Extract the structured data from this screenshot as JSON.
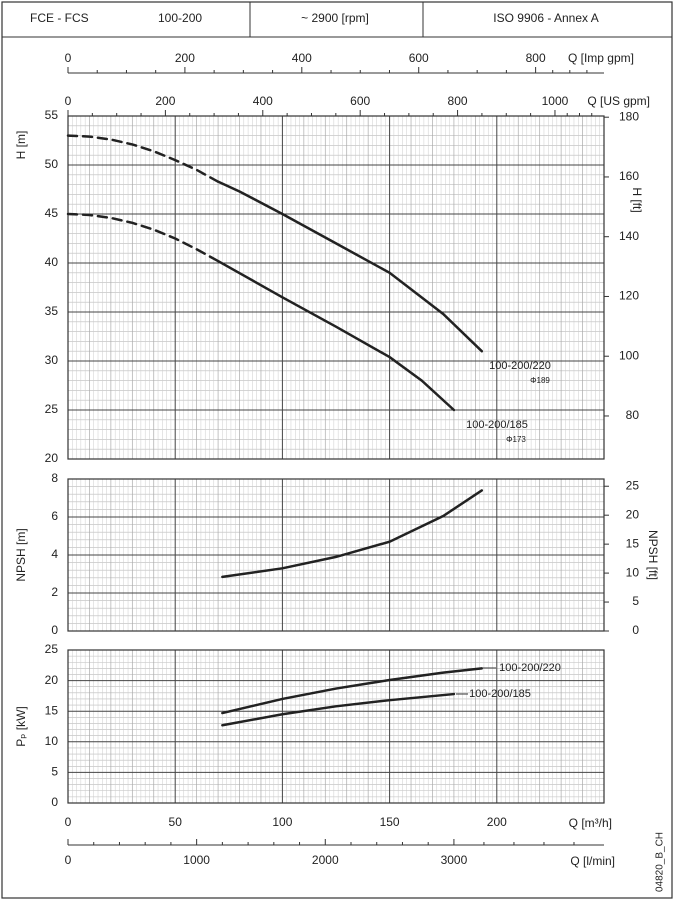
{
  "header": {
    "cells": [
      "FCE - FCS",
      "100-200",
      "~ 2900 [rpm]",
      "ISO 9906 - Annex A"
    ]
  },
  "code": "04820_B_CH",
  "top_axes": [
    {
      "label": "Q [Imp gpm]",
      "lim": [
        0,
        917
      ],
      "ticks": [
        0,
        200,
        400,
        600,
        800
      ]
    },
    {
      "label": "Q [US gpm]",
      "lim": [
        0,
        1100.7
      ],
      "ticks": [
        0,
        200,
        400,
        600,
        800,
        1000
      ]
    }
  ],
  "bottom_axis": {
    "label": "Q [l/min]",
    "lim": [
      0,
      4166.7
    ],
    "ticks": [
      0,
      1000,
      2000,
      3000
    ]
  },
  "chart_data": [
    {
      "type": "line",
      "ylabel": "H [m]",
      "ylim": [
        20,
        55
      ],
      "yticks": [
        20,
        25,
        30,
        35,
        40,
        45,
        50,
        55
      ],
      "y2label": "H [ft]",
      "y2lim": [
        65.6,
        180.4
      ],
      "y2ticks": [
        80,
        100,
        120,
        140,
        160,
        180
      ],
      "grid": true,
      "minor_divisions": 5,
      "annotations": [
        "100-200/220",
        "Φ189",
        "100-200/185",
        "Φ173"
      ],
      "series": [
        {
          "color": "#222222",
          "dashed": true,
          "x": [
            0,
            10,
            20,
            30,
            40,
            50,
            60,
            70
          ],
          "values": [
            53,
            52.9,
            52.6,
            52.1,
            51.4,
            50.5,
            49.5,
            48.3
          ]
        },
        {
          "color": "#222222",
          "dashed": false,
          "x": [
            70,
            80,
            100,
            125,
            150,
            175,
            193
          ],
          "values": [
            48.3,
            47.3,
            45,
            42,
            39,
            34.8,
            31
          ]
        },
        {
          "color": "#222222",
          "dashed": true,
          "x": [
            0,
            10,
            20,
            30,
            40,
            50,
            60,
            70
          ],
          "values": [
            45,
            44.9,
            44.6,
            44.1,
            43.4,
            42.5,
            41.4,
            40.2
          ]
        },
        {
          "color": "#222222",
          "dashed": false,
          "x": [
            70,
            100,
            125,
            150,
            165,
            180
          ],
          "values": [
            40.2,
            36.5,
            33.5,
            30.4,
            28,
            25
          ]
        }
      ]
    },
    {
      "type": "line",
      "ylabel": "NPSH [m]",
      "ylim": [
        0,
        8
      ],
      "yticks": [
        0,
        2,
        4,
        6,
        8
      ],
      "y2label": "NPSH [ft]",
      "y2lim": [
        0,
        26.25
      ],
      "y2ticks": [
        0,
        5,
        10,
        15,
        20,
        25
      ],
      "grid": true,
      "minor_divisions": 5,
      "series": [
        {
          "color": "#222222",
          "dashed": false,
          "x": [
            72,
            100,
            125,
            150,
            175,
            193
          ],
          "values": [
            2.85,
            3.3,
            3.9,
            4.7,
            6.05,
            7.4
          ]
        }
      ]
    },
    {
      "type": "line",
      "ylabel": "Pₚ [kW]",
      "ylim": [
        0,
        25
      ],
      "yticks": [
        0,
        5,
        10,
        15,
        20,
        25
      ],
      "grid": true,
      "minor_divisions": 5,
      "xlabel": "Q [m³/h]",
      "xlim": [
        0,
        250
      ],
      "xticks": [
        0,
        50,
        100,
        150,
        200
      ],
      "annotations": [
        "100-200/220",
        "100-200/185"
      ],
      "series": [
        {
          "color": "#222222",
          "dashed": false,
          "x": [
            72,
            100,
            125,
            150,
            175,
            193
          ],
          "values": [
            14.7,
            17,
            18.7,
            20.1,
            21.3,
            22
          ]
        },
        {
          "color": "#222222",
          "dashed": false,
          "x": [
            72,
            100,
            125,
            150,
            180
          ],
          "values": [
            12.7,
            14.5,
            15.8,
            16.8,
            17.8
          ]
        }
      ]
    }
  ]
}
